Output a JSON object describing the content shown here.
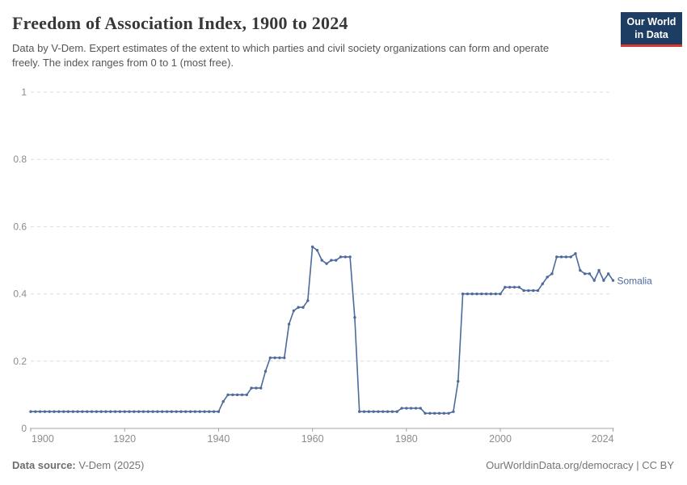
{
  "header": {
    "title": "Freedom of Association Index, 1900 to 2024",
    "subtitle": "Data by V-Dem. Expert estimates of the extent to which parties and civil society organizations can form and operate freely. The index ranges from 0 to 1 (most free).",
    "logo": {
      "line1": "Our World",
      "line2": "in Data",
      "bg_color": "#1d3d63",
      "bar_color": "#d33a2c"
    }
  },
  "footer": {
    "source_label": "Data source:",
    "source_value": " V-Dem (2025)",
    "link": "OurWorldinData.org/democracy | CC BY"
  },
  "chart_data": {
    "type": "line",
    "title": "Freedom of Association Index, 1900 to 2024",
    "xlabel": "",
    "ylabel": "",
    "x_start": 1900,
    "x_end": 2024,
    "x_step": 1,
    "ylim": [
      0,
      1
    ],
    "grid": "dashed-horizontal",
    "legend_position": "end-of-line-label",
    "y_ticks": [
      {
        "value": 1,
        "label": "1"
      },
      {
        "value": 0.8,
        "label": "0.8"
      },
      {
        "value": 0.6,
        "label": "0.6"
      },
      {
        "value": 0.4,
        "label": "0.4"
      },
      {
        "value": 0.2,
        "label": "0.2"
      },
      {
        "value": 0,
        "label": "0"
      }
    ],
    "x_ticks": [
      {
        "value": 1900,
        "label": "1900"
      },
      {
        "value": 1920,
        "label": "1920"
      },
      {
        "value": 1940,
        "label": "1940"
      },
      {
        "value": 1960,
        "label": "1960"
      },
      {
        "value": 1980,
        "label": "1980"
      },
      {
        "value": 2000,
        "label": "2000"
      },
      {
        "value": 2024,
        "label": "2024"
      }
    ],
    "series": [
      {
        "name": "Somalia",
        "color": "#4c6a9c",
        "values": [
          0.05,
          0.05,
          0.05,
          0.05,
          0.05,
          0.05,
          0.05,
          0.05,
          0.05,
          0.05,
          0.05,
          0.05,
          0.05,
          0.05,
          0.05,
          0.05,
          0.05,
          0.05,
          0.05,
          0.05,
          0.05,
          0.05,
          0.05,
          0.05,
          0.05,
          0.05,
          0.05,
          0.05,
          0.05,
          0.05,
          0.05,
          0.05,
          0.05,
          0.05,
          0.05,
          0.05,
          0.05,
          0.05,
          0.05,
          0.05,
          0.05,
          0.08,
          0.1,
          0.1,
          0.1,
          0.1,
          0.1,
          0.12,
          0.12,
          0.12,
          0.17,
          0.21,
          0.21,
          0.21,
          0.21,
          0.31,
          0.35,
          0.36,
          0.36,
          0.38,
          0.54,
          0.53,
          0.5,
          0.49,
          0.5,
          0.5,
          0.51,
          0.51,
          0.51,
          0.33,
          0.05,
          0.05,
          0.05,
          0.05,
          0.05,
          0.05,
          0.05,
          0.05,
          0.05,
          0.06,
          0.06,
          0.06,
          0.06,
          0.06,
          0.045,
          0.045,
          0.045,
          0.045,
          0.045,
          0.045,
          0.05,
          0.14,
          0.4,
          0.4,
          0.4,
          0.4,
          0.4,
          0.4,
          0.4,
          0.4,
          0.4,
          0.42,
          0.42,
          0.42,
          0.42,
          0.41,
          0.41,
          0.41,
          0.41,
          0.43,
          0.45,
          0.46,
          0.51,
          0.51,
          0.51,
          0.51,
          0.52,
          0.47,
          0.46,
          0.46,
          0.44,
          0.47,
          0.44,
          0.46,
          0.44
        ]
      }
    ],
    "colors": {
      "line": "#4c6a9c",
      "gridline": "#dcdcdc",
      "axis": "#a3a3a3",
      "tick_label": "#8c8c8c"
    }
  }
}
